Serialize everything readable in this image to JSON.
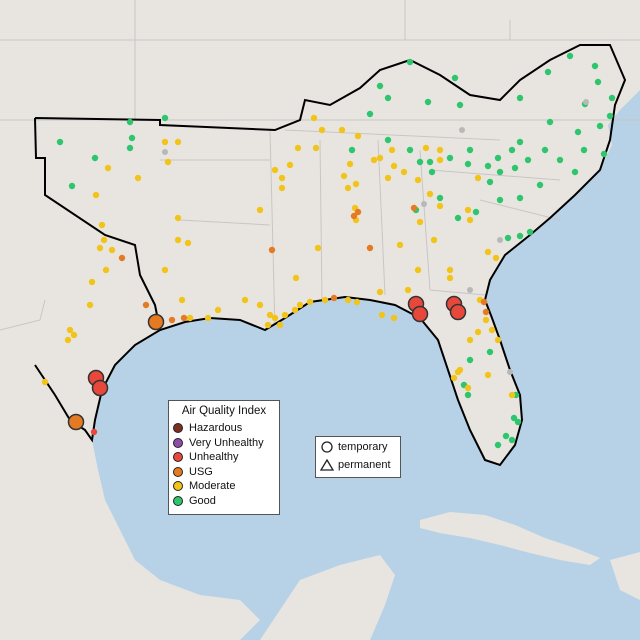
{
  "legend": {
    "title": "Air Quality Index",
    "categories": [
      {
        "label": "Hazardous",
        "color": "#7e2d22"
      },
      {
        "label": "Very Unhealthy",
        "color": "#8e4bab"
      },
      {
        "label": "Unhealthy",
        "color": "#e8483c"
      },
      {
        "label": "USG",
        "color": "#e67a22"
      },
      {
        "label": "Moderate",
        "color": "#f2c318"
      },
      {
        "label": "Good",
        "color": "#2ec66d"
      }
    ]
  },
  "site_type_legend": {
    "temporary": "temporary",
    "permanent": "permanent"
  },
  "colors": {
    "land": "#e8e5e1",
    "water": "#b7d2e6",
    "borders": "#c8c6c4",
    "region_outline": "#000000",
    "marker_stroke": "#333333"
  }
}
